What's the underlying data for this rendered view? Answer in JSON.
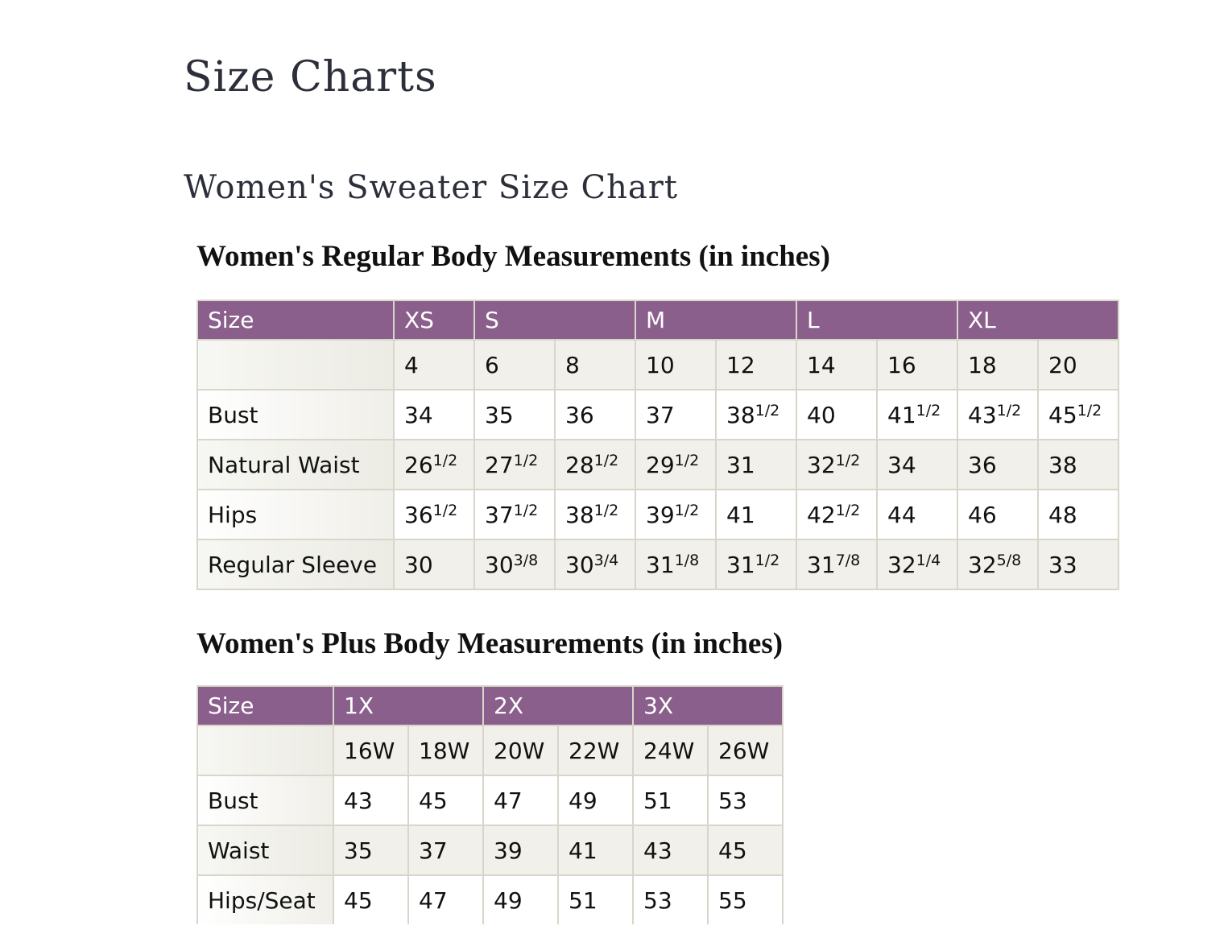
{
  "page_title": "Size Charts",
  "section_title": "Women's Sweater Size Chart",
  "colors": {
    "header_bg": "#8b5f8c",
    "alt_row_bg": "#f1f0ea",
    "border": "#d8d6cb"
  },
  "regular": {
    "title": "Women's Regular Body Measurements (in inches)",
    "header": [
      {
        "label": "Size",
        "span": 1
      },
      {
        "label": "XS",
        "span": 1
      },
      {
        "label": "S",
        "span": 2
      },
      {
        "label": "M",
        "span": 2
      },
      {
        "label": "L",
        "span": 2
      },
      {
        "label": "XL",
        "span": 2
      }
    ],
    "rows": [
      {
        "label": "",
        "cells": [
          [
            "4"
          ],
          [
            "6"
          ],
          [
            "8"
          ],
          [
            "10"
          ],
          [
            "12"
          ],
          [
            "14"
          ],
          [
            "16"
          ],
          [
            "18"
          ],
          [
            "20"
          ]
        ]
      },
      {
        "label": "Bust",
        "cells": [
          [
            "34"
          ],
          [
            "35"
          ],
          [
            "36"
          ],
          [
            "37"
          ],
          [
            "38",
            "1/2"
          ],
          [
            "40"
          ],
          [
            "41",
            "1/2"
          ],
          [
            "43",
            "1/2"
          ],
          [
            "45",
            "1/2"
          ]
        ]
      },
      {
        "label": "Natural Waist",
        "cells": [
          [
            "26",
            "1/2"
          ],
          [
            "27",
            "1/2"
          ],
          [
            "28",
            "1/2"
          ],
          [
            "29",
            "1/2"
          ],
          [
            "31"
          ],
          [
            "32",
            "1/2"
          ],
          [
            "34"
          ],
          [
            "36"
          ],
          [
            "38"
          ]
        ]
      },
      {
        "label": "Hips",
        "cells": [
          [
            "36",
            "1/2"
          ],
          [
            "37",
            "1/2"
          ],
          [
            "38",
            "1/2"
          ],
          [
            "39",
            "1/2"
          ],
          [
            "41"
          ],
          [
            "42",
            "1/2"
          ],
          [
            "44"
          ],
          [
            "46"
          ],
          [
            "48"
          ]
        ]
      },
      {
        "label": "Regular Sleeve",
        "cells": [
          [
            "30"
          ],
          [
            "30",
            "3/8"
          ],
          [
            "30",
            "3/4"
          ],
          [
            "31",
            "1/8"
          ],
          [
            "31",
            "1/2"
          ],
          [
            "31",
            "7/8"
          ],
          [
            "32",
            "1/4"
          ],
          [
            "32",
            "5/8"
          ],
          [
            "33"
          ]
        ]
      }
    ]
  },
  "plus": {
    "title": "Women's Plus Body Measurements (in inches)",
    "header": [
      {
        "label": "Size",
        "span": 1
      },
      {
        "label": "1X",
        "span": 2
      },
      {
        "label": "2X",
        "span": 2
      },
      {
        "label": "3X",
        "span": 2
      }
    ],
    "rows": [
      {
        "label": "",
        "cells": [
          [
            "16W"
          ],
          [
            "18W"
          ],
          [
            "20W"
          ],
          [
            "22W"
          ],
          [
            "24W"
          ],
          [
            "26W"
          ]
        ]
      },
      {
        "label": "Bust",
        "cells": [
          [
            "43"
          ],
          [
            "45"
          ],
          [
            "47"
          ],
          [
            "49"
          ],
          [
            "51"
          ],
          [
            "53"
          ]
        ]
      },
      {
        "label": "Waist",
        "cells": [
          [
            "35"
          ],
          [
            "37"
          ],
          [
            "39"
          ],
          [
            "41"
          ],
          [
            "43"
          ],
          [
            "45"
          ]
        ]
      },
      {
        "label": "Hips/Seat",
        "cells": [
          [
            "45"
          ],
          [
            "47"
          ],
          [
            "49"
          ],
          [
            "51"
          ],
          [
            "53"
          ],
          [
            "55"
          ]
        ]
      }
    ]
  }
}
